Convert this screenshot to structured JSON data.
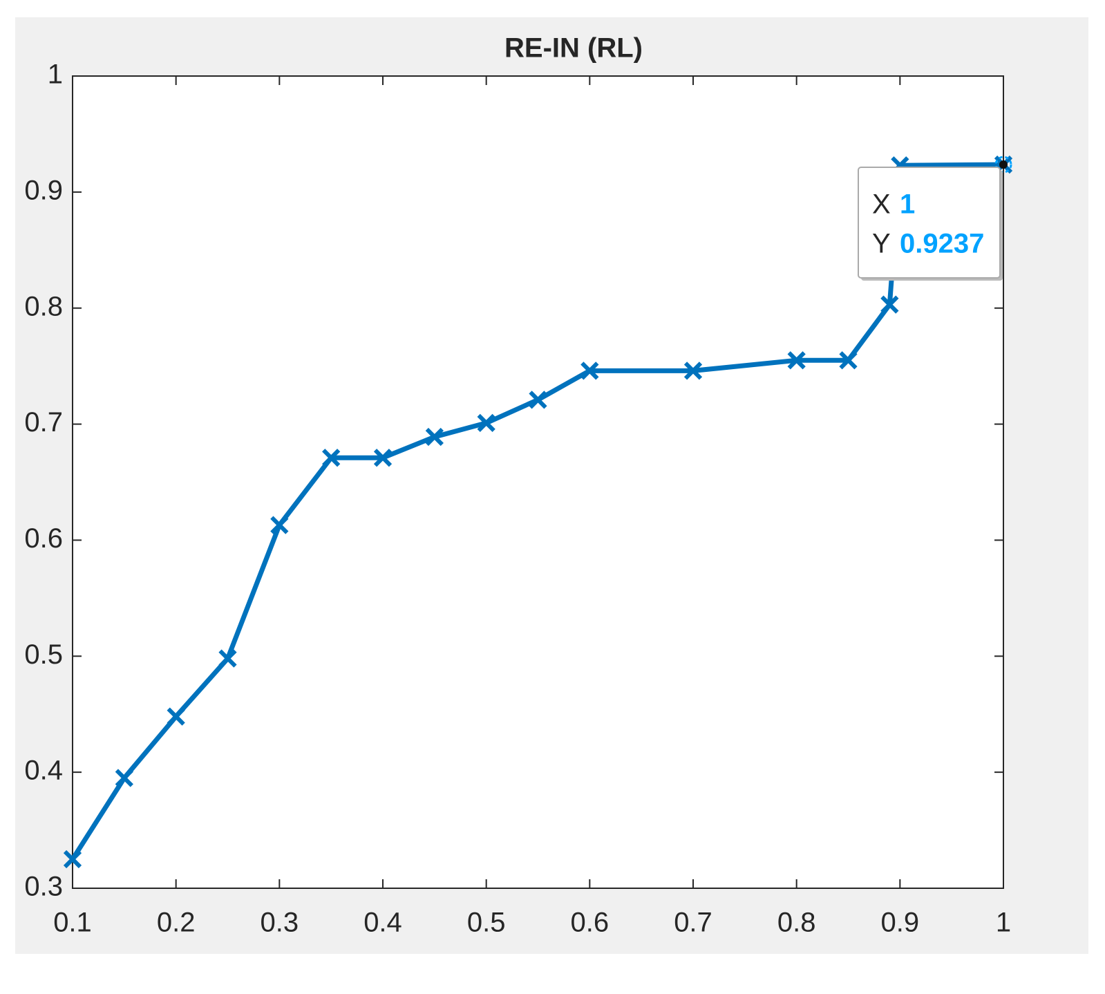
{
  "chart_data": {
    "type": "line",
    "title": "RE-IN (RL)",
    "x": [
      0.1,
      0.15,
      0.2,
      0.25,
      0.3,
      0.35,
      0.4,
      0.45,
      0.5,
      0.55,
      0.6,
      0.7,
      0.8,
      0.85,
      0.89,
      0.9,
      1
    ],
    "values": [
      0.325,
      0.395,
      0.448,
      0.498,
      0.613,
      0.671,
      0.671,
      0.689,
      0.701,
      0.721,
      0.746,
      0.746,
      0.755,
      0.755,
      0.803,
      0.923,
      0.9237
    ],
    "color": "#0072bd",
    "marker": "x",
    "xlim": [
      0.1,
      1
    ],
    "xticks": [
      0.1,
      0.2,
      0.3,
      0.4,
      0.5,
      0.6,
      0.7,
      0.8,
      0.9,
      1
    ],
    "ylim": [
      0.3,
      1
    ],
    "yticks": [
      0.3,
      0.4,
      0.5,
      0.6,
      0.7,
      0.8,
      0.9,
      1
    ],
    "grid": false,
    "datatip": {
      "x_label": "X",
      "x": 1,
      "y_label": "Y",
      "y": 0.9237
    }
  }
}
